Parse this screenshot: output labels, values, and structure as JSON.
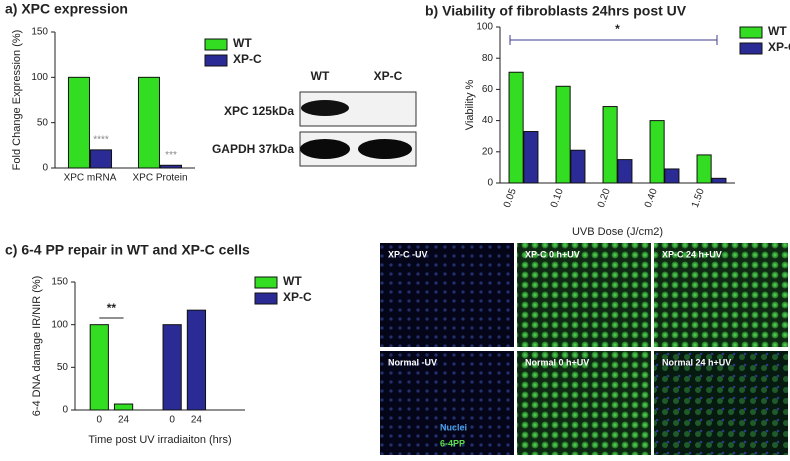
{
  "chart_data": [
    {
      "type": "bar",
      "title": "a) XPC expression",
      "y_label": "Fold Change Expression (%)",
      "categories": [
        "XPC mRNA",
        "XPC Protein"
      ],
      "series": [
        {
          "name": "WT",
          "color": "#33dd22",
          "values": [
            100,
            100
          ]
        },
        {
          "name": "XP-C",
          "color": "#2b2b96",
          "values": [
            20,
            3
          ]
        }
      ],
      "ylim": [
        0,
        150
      ],
      "yticks": [
        0,
        50,
        100,
        150
      ],
      "annotations": [
        "****",
        "***"
      ]
    },
    {
      "type": "bar",
      "title": "b) Viability of fibroblasts 24hrs post UV",
      "x_label": "UVB Dose (J/cm2)",
      "y_label": "Viability %",
      "categories": [
        "0.05",
        "0.10",
        "0.20",
        "0.40",
        "1.50"
      ],
      "series": [
        {
          "name": "WT",
          "color": "#33dd22",
          "values": [
            71,
            62,
            49,
            40,
            18
          ]
        },
        {
          "name": "XP-C",
          "color": "#2b2b96",
          "values": [
            33,
            21,
            15,
            9,
            3
          ]
        }
      ],
      "ylim": [
        0,
        100
      ],
      "yticks": [
        0,
        20,
        40,
        60,
        80,
        100
      ],
      "annotations": [
        "*"
      ]
    },
    {
      "type": "bar",
      "title": "c) 6-4 PP repair in WT and XP-C cells",
      "x_label": "Time post UV irradiaiton (hrs)",
      "y_label": "6-4 DNA damage IR/NIR (%)",
      "categories": [
        "0",
        "24"
      ],
      "series": [
        {
          "name": "WT",
          "color": "#33dd22",
          "values": [
            100,
            7
          ]
        },
        {
          "name": "XP-C",
          "color": "#2b2b96",
          "values": [
            100,
            117
          ]
        }
      ],
      "ylim": [
        0,
        150
      ],
      "yticks": [
        0,
        50,
        100,
        150
      ],
      "annotations": [
        "**"
      ]
    }
  ],
  "blot": {
    "lanes": [
      "WT",
      "XP-C"
    ],
    "bands": [
      "XPC 125kDa",
      "GAPDH 37kDa"
    ]
  },
  "micrographs": {
    "panels": [
      "XP-C -UV",
      "XP-C 0 h+UV",
      "XP-C 24 h+UV",
      "Normal -UV",
      "Normal 0 h+UV",
      "Normal 24 h+UV"
    ],
    "stains": [
      "Nuclei",
      "6-4PP"
    ]
  }
}
